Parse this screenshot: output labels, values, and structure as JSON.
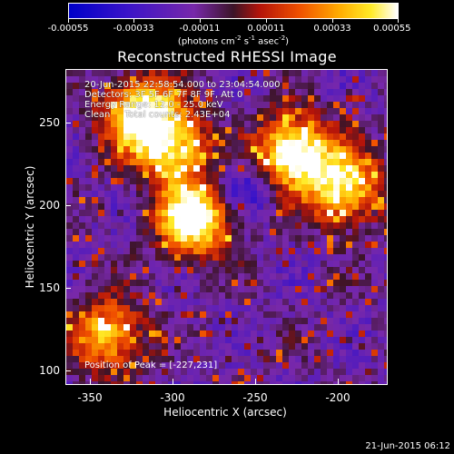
{
  "colorbar": {
    "ticks": [
      "-0.00055",
      "-0.00033",
      "-0.00011",
      "0.00011",
      "0.00033",
      "0.00055"
    ],
    "unit_prefix": "(photons cm",
    "unit_exp1": "-2",
    "unit_mid1": " s",
    "unit_exp2": "-1",
    "unit_mid2": " asec",
    "unit_exp3": "-2",
    "unit_suffix": ")"
  },
  "title": "Reconstructed RHESSI Image",
  "info": {
    "time_range": "20-Jun-2015 22:58:54.000 to 23:04:54.000",
    "detectors": "Detectors: 3F 5F 6F 7F 8F 9F, Att 0",
    "energy": "Energy Range: 12.0 - 25.0 keV",
    "algorithm": "Clean     Total counts: 2.43E+04",
    "peak": "Position of Peak = [-227,231]"
  },
  "axes": {
    "xlabel": "Heliocentric X (arcsec)",
    "ylabel": "Heliocentric Y (arcsec)",
    "xticks": [
      "-350",
      "-300",
      "-250",
      "-200"
    ],
    "yticks": [
      "100",
      "150",
      "200",
      "250"
    ],
    "xlim": [
      -365,
      -170
    ],
    "ylim": [
      90,
      282
    ]
  },
  "footer": {
    "timestamp": "21-Jun-2015 06:12"
  },
  "colors": {
    "background": "#000000",
    "foreground": "#ffffff"
  },
  "image": {
    "colormap": "blue-purple-red-yellow-white",
    "peak_position": [
      -227,
      231
    ],
    "bright_regions": [
      {
        "x": -287,
        "y": 191,
        "level": 1.0
      },
      {
        "x": -227,
        "y": 231,
        "level": 1.0
      },
      {
        "x": -320,
        "y": 255,
        "level": 0.9
      },
      {
        "x": -195,
        "y": 210,
        "level": 0.8
      },
      {
        "x": -340,
        "y": 120,
        "level": 0.7
      },
      {
        "x": -300,
        "y": 235,
        "level": 0.75
      }
    ]
  }
}
